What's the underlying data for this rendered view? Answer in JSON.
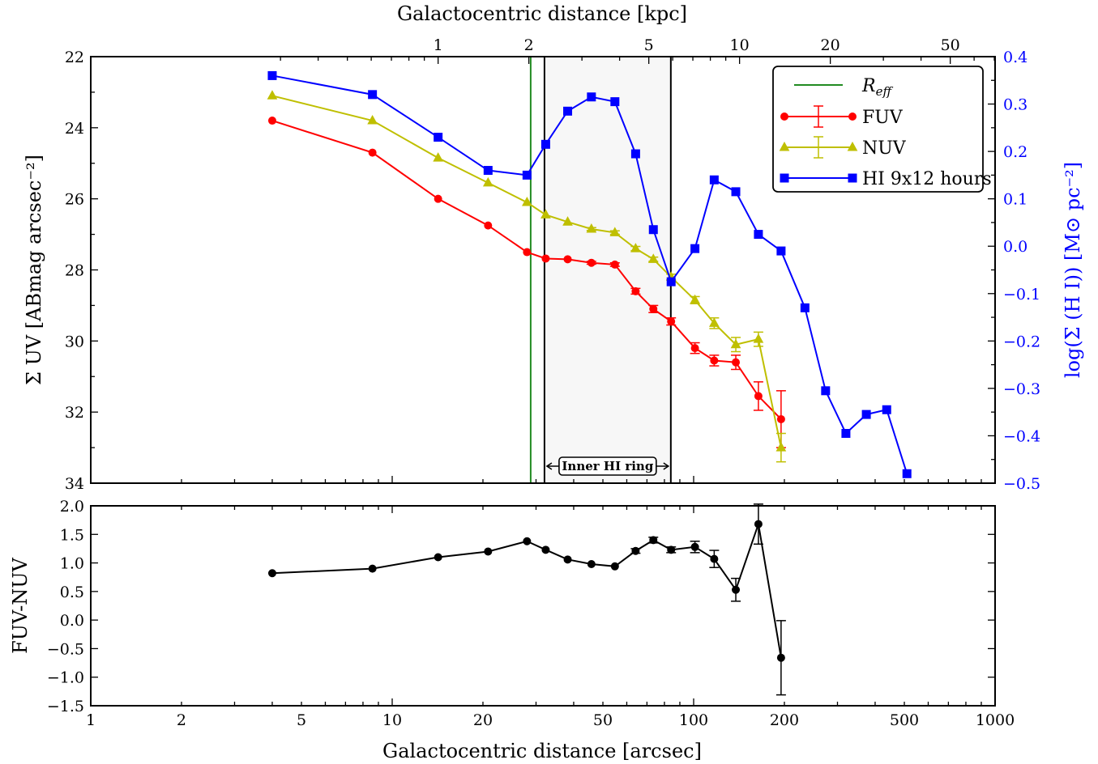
{
  "chart_data": [
    {
      "panel": "top",
      "type": "line",
      "xscale": "log",
      "xlim": [
        1,
        1000
      ],
      "xlabel_top": "Galactocentric distance [kpc]",
      "top_ticks": [
        {
          "label": "1",
          "arcsec": 14.2
        },
        {
          "label": "2",
          "arcsec": 28.4
        },
        {
          "label": "5",
          "arcsec": 71
        },
        {
          "label": "10",
          "arcsec": 142
        },
        {
          "label": "20",
          "arcsec": 284
        },
        {
          "label": "50",
          "arcsec": 710
        }
      ],
      "ylabel_left": "Σ UV [ABmag arcsec⁻²]",
      "ylim_left": [
        34,
        22
      ],
      "yticks_left": [
        "22",
        "24",
        "26",
        "28",
        "30",
        "32",
        "34"
      ],
      "ylabel_right": "log(Σ (H I)) [M⊙ pc⁻²]",
      "ylim_right": [
        -0.5,
        0.4
      ],
      "yticks_right": [
        "0.4",
        "0.3",
        "0.2",
        "0.1",
        "0.0",
        "−0.1",
        "−0.2",
        "−0.3",
        "−0.4",
        "−0.5"
      ],
      "reff": {
        "label": "R_eff",
        "x": 28.8,
        "color": "#228b22"
      },
      "ring": {
        "label": "Inner HI ring",
        "x0": 32,
        "x1": 84
      },
      "legend": {
        "position": "top-right",
        "labels": {
          "reff": "R",
          "reff_sub": "eff",
          "fuv": "FUV",
          "nuv": "NUV",
          "hi": "HI 9x12 hours"
        }
      },
      "series": [
        {
          "name": "FUV",
          "color": "#ff0000",
          "marker": "circle",
          "axis": "left",
          "x": [
            4.0,
            8.6,
            14.2,
            20.8,
            28.0,
            32.3,
            38.2,
            45.8,
            54.8,
            64.2,
            73.5,
            84.2,
            101.0,
            117.0,
            138.0,
            164.0,
            195.0
          ],
          "y": [
            23.8,
            24.7,
            26.0,
            26.75,
            27.5,
            27.68,
            27.7,
            27.8,
            27.85,
            28.6,
            29.1,
            29.45,
            30.2,
            30.55,
            30.6,
            31.55,
            32.2
          ],
          "err": [
            0.02,
            0.02,
            0.02,
            0.03,
            0.03,
            0.03,
            0.03,
            0.04,
            0.05,
            0.08,
            0.1,
            0.1,
            0.15,
            0.15,
            0.2,
            0.4,
            0.8
          ]
        },
        {
          "name": "NUV",
          "color": "#bfbf00",
          "marker": "triangle",
          "axis": "left",
          "x": [
            4.0,
            8.6,
            14.2,
            20.8,
            28.0,
            32.3,
            38.2,
            45.8,
            54.8,
            64.2,
            73.5,
            84.2,
            101.0,
            117.0,
            138.0,
            164.0,
            195.0
          ],
          "y": [
            23.1,
            23.8,
            24.85,
            25.55,
            26.1,
            26.45,
            26.65,
            26.85,
            26.95,
            27.4,
            27.7,
            28.2,
            28.85,
            29.5,
            30.1,
            29.95,
            33.0
          ],
          "err": [
            0.02,
            0.02,
            0.02,
            0.02,
            0.02,
            0.03,
            0.03,
            0.04,
            0.05,
            0.06,
            0.06,
            0.08,
            0.1,
            0.15,
            0.2,
            0.2,
            0.4
          ]
        },
        {
          "name": "HI 9x12 hours",
          "color": "#0000ff",
          "marker": "square",
          "axis": "right",
          "x": [
            4.0,
            8.6,
            14.2,
            20.8,
            28.0,
            32.3,
            38.2,
            45.8,
            54.8,
            64.2,
            73.5,
            84.2,
            101.0,
            117.0,
            138.0,
            164.0,
            195.0,
            234.0,
            274.0,
            320.0,
            374.0,
            437.0,
            510.0
          ],
          "y": [
            0.36,
            0.32,
            0.23,
            0.16,
            0.15,
            0.215,
            0.285,
            0.315,
            0.305,
            0.195,
            0.035,
            -0.075,
            -0.005,
            0.14,
            0.115,
            0.025,
            -0.01,
            -0.13,
            -0.305,
            -0.395,
            -0.355,
            -0.345,
            -0.48
          ]
        }
      ]
    },
    {
      "panel": "bottom",
      "type": "line",
      "xscale": "log",
      "xlim": [
        1,
        1000
      ],
      "xticks": [
        "1",
        "2",
        "5",
        "10",
        "20",
        "50",
        "100",
        "200",
        "500",
        "1000"
      ],
      "xlabel": "Galactocentric distance [arcsec]",
      "ylabel": "FUV-NUV",
      "ylim": [
        -1.5,
        2.0
      ],
      "yticks": [
        "2.0",
        "1.5",
        "1.0",
        "0.5",
        "0.0",
        "−0.5",
        "−1.0",
        "−1.5"
      ],
      "series": [
        {
          "name": "",
          "color": "#000000",
          "marker": "circle",
          "x": [
            4.0,
            8.6,
            14.2,
            20.8,
            28.0,
            32.3,
            38.2,
            45.8,
            54.8,
            64.2,
            73.5,
            84.2,
            101.0,
            117.0,
            138.0,
            164.0,
            195.0
          ],
          "y": [
            0.82,
            0.9,
            1.1,
            1.2,
            1.38,
            1.23,
            1.06,
            0.98,
            0.94,
            1.21,
            1.4,
            1.23,
            1.28,
            1.07,
            0.53,
            1.68,
            -0.66
          ],
          "err": [
            0.01,
            0.01,
            0.01,
            0.01,
            0.02,
            0.02,
            0.02,
            0.03,
            0.03,
            0.04,
            0.05,
            0.05,
            0.1,
            0.15,
            0.2,
            0.35,
            0.65
          ]
        }
      ]
    }
  ]
}
